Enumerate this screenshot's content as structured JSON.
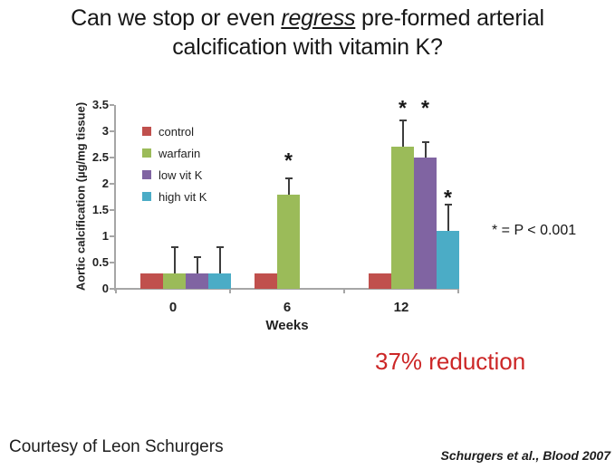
{
  "title": {
    "prefix": "Can we stop or even ",
    "emphasis": "regress",
    "suffix": " pre-formed arterial calcification with vitamin K?"
  },
  "chart_data": {
    "type": "bar",
    "categories": [
      "0",
      "6",
      "12"
    ],
    "xlabel": "Weeks",
    "ylabel": "Aortic calcification (µg/mg tissue)",
    "ylim": [
      0,
      3.5
    ],
    "ytick_step": 0.5,
    "yticks": [
      "0",
      "0.5",
      "1",
      "1.5",
      "2",
      "2.5",
      "3",
      "3.5"
    ],
    "grid": false,
    "legend_position": "upper-left-inside",
    "series": [
      {
        "name": "control",
        "color": "#C0504D",
        "values": [
          0.3,
          0.3,
          0.3
        ],
        "err_top": [
          null,
          null,
          null
        ]
      },
      {
        "name": "warfarin",
        "color": "#9BBB59",
        "values": [
          0.3,
          1.8,
          2.7
        ],
        "err_top": [
          0.8,
          2.1,
          3.2
        ]
      },
      {
        "name": "low vit K",
        "color": "#8064A2",
        "values": [
          0.3,
          null,
          2.5
        ],
        "err_top": [
          0.6,
          null,
          2.8
        ]
      },
      {
        "name": "high vit K",
        "color": "#4BACC6",
        "values": [
          0.3,
          null,
          1.1
        ],
        "err_top": [
          0.8,
          null,
          1.6
        ]
      }
    ],
    "significance_marker": "*",
    "asterisks": [
      {
        "category": 1,
        "series": 1,
        "y": 2.45
      },
      {
        "category": 2,
        "series": 1,
        "y": 3.45
      },
      {
        "category": 2,
        "series": 2,
        "y": 3.45
      },
      {
        "category": 2,
        "series": 3,
        "y": 1.75
      }
    ],
    "error_bar_color": "#3d3d3d"
  },
  "annotations": {
    "sig_note": "* = P < 0.001",
    "reduction_note": "37% reduction",
    "reduction_color": "#CC2626"
  },
  "footer": {
    "courtesy": "Courtesy of Leon Schurgers",
    "citation": "Schurgers et al., Blood 2007"
  }
}
